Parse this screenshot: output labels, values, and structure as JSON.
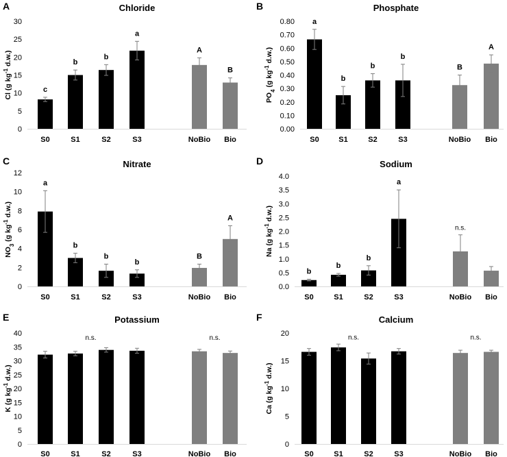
{
  "colors": {
    "soil_bar": "#000000",
    "bio_bar": "#7f7f7f",
    "axis": "#d9d9d9",
    "error": "#7f7f7f"
  },
  "chart_data": [
    {
      "panel": "A",
      "type": "bar",
      "title": "Chloride",
      "ylabel": {
        "pre": "Cl (g kg",
        "sup": "-1",
        "post": " d.w.)"
      },
      "categories": [
        "S0",
        "S1",
        "S2",
        "S3",
        "NoBio",
        "Bio"
      ],
      "values": [
        8.2,
        15.0,
        16.4,
        21.8,
        17.8,
        12.9
      ],
      "errors": [
        0.6,
        1.4,
        1.5,
        2.6,
        2.0,
        1.3
      ],
      "letters": [
        "c",
        "b",
        "b",
        "a",
        "A",
        "B"
      ],
      "ns": [],
      "ylim": [
        0,
        30
      ],
      "yticks": [
        "0",
        "5",
        "10",
        "15",
        "20",
        "25",
        "30"
      ]
    },
    {
      "panel": "B",
      "type": "bar",
      "title": "Phosphate",
      "ylabel": {
        "pre": "PO",
        "sub": "4",
        "pre2": " (g kg",
        "sup": "-1",
        "post": " d.w.)"
      },
      "categories": [
        "S0",
        "S1",
        "S2",
        "S3",
        "NoBio",
        "Bio"
      ],
      "values": [
        0.665,
        0.25,
        0.36,
        0.36,
        0.325,
        0.485
      ],
      "errors": [
        0.075,
        0.065,
        0.05,
        0.12,
        0.075,
        0.065
      ],
      "letters": [
        "a",
        "b",
        "b",
        "b",
        "B",
        "A"
      ],
      "ns": [],
      "ylim": [
        0,
        0.8
      ],
      "yticks": [
        "0.00",
        "0.10",
        "0.20",
        "0.30",
        "0.40",
        "0.50",
        "0.60",
        "0.70",
        "0.80"
      ]
    },
    {
      "panel": "C",
      "type": "bar",
      "title": "Nitrate",
      "ylabel": {
        "pre": "NO",
        "sub": "3",
        "pre2": " (g kg",
        "sup": "-1",
        "post": " d.w.)"
      },
      "categories": [
        "S0",
        "S1",
        "S2",
        "S3",
        "NoBio",
        "Bio"
      ],
      "values": [
        7.9,
        3.0,
        1.65,
        1.35,
        1.95,
        5.0
      ],
      "errors": [
        2.2,
        0.5,
        0.7,
        0.4,
        0.4,
        1.4
      ],
      "letters": [
        "a",
        "b",
        "b",
        "b",
        "B",
        "A"
      ],
      "ns": [],
      "ylim": [
        0,
        12
      ],
      "yticks": [
        "0",
        "2",
        "4",
        "6",
        "8",
        "10",
        "12"
      ]
    },
    {
      "panel": "D",
      "type": "bar",
      "title": "Sodium",
      "ylabel": {
        "pre": "Na (g kg",
        "sup": "-1",
        "post": " d.w.)"
      },
      "categories": [
        "S0",
        "S1",
        "S2",
        "S3",
        "NoBio",
        "Bio"
      ],
      "values": [
        0.23,
        0.42,
        0.58,
        2.45,
        1.27,
        0.57
      ],
      "errors": [
        0.03,
        0.05,
        0.17,
        1.05,
        0.6,
        0.15
      ],
      "letters": [
        "b",
        "b",
        "b",
        "a",
        "",
        ""
      ],
      "ns": [
        {
          "text": "n.s.",
          "x_between": [
            4,
            4
          ],
          "y": 2.05
        }
      ],
      "ylim": [
        0,
        4
      ],
      "yticks": [
        "0.0",
        "0.5",
        "1.0",
        "1.5",
        "2.0",
        "2.5",
        "3.0",
        "3.5",
        "4.0"
      ]
    },
    {
      "panel": "E",
      "type": "bar",
      "title": "Potassium",
      "ylabel": {
        "pre": "K (g kg",
        "sup": "-1",
        "post": " d.w.)"
      },
      "categories": [
        "S0",
        "S1",
        "S2",
        "S3",
        "NoBio",
        "Bio"
      ],
      "values": [
        32.2,
        32.6,
        33.9,
        33.6,
        33.4,
        32.8
      ],
      "errors": [
        1.2,
        0.8,
        0.8,
        0.9,
        0.7,
        0.7
      ],
      "letters": [
        "",
        "",
        "",
        "",
        "",
        ""
      ],
      "ns": [
        {
          "text": "n.s.",
          "x_between": [
            1,
            2
          ],
          "y": 37.5
        },
        {
          "text": "n.s.",
          "x_between": [
            4,
            5
          ],
          "y": 37.5
        }
      ],
      "ylim": [
        0,
        40
      ],
      "yticks": [
        "0",
        "5",
        "10",
        "15",
        "20",
        "25",
        "30",
        "35",
        "40"
      ]
    },
    {
      "panel": "F",
      "type": "bar",
      "title": "Calcium",
      "ylabel": {
        "pre": "Ca (g kg",
        "sup": "-1",
        "post": " d.w.)"
      },
      "categories": [
        "S0",
        "S1",
        "S2",
        "S3",
        "NoBio",
        "Bio"
      ],
      "values": [
        16.6,
        17.4,
        15.4,
        16.7,
        16.4,
        16.6
      ],
      "errors": [
        0.6,
        0.6,
        1.0,
        0.5,
        0.5,
        0.3
      ],
      "letters": [
        "",
        "",
        "",
        "",
        "",
        ""
      ],
      "ns": [
        {
          "text": "n.s.",
          "x_between": [
            1,
            2
          ],
          "y": 18.8
        },
        {
          "text": "n.s.",
          "x_between": [
            4,
            5
          ],
          "y": 18.8
        }
      ],
      "ylim": [
        0,
        20
      ],
      "yticks": [
        "0",
        "5",
        "10",
        "15",
        "20"
      ]
    }
  ]
}
